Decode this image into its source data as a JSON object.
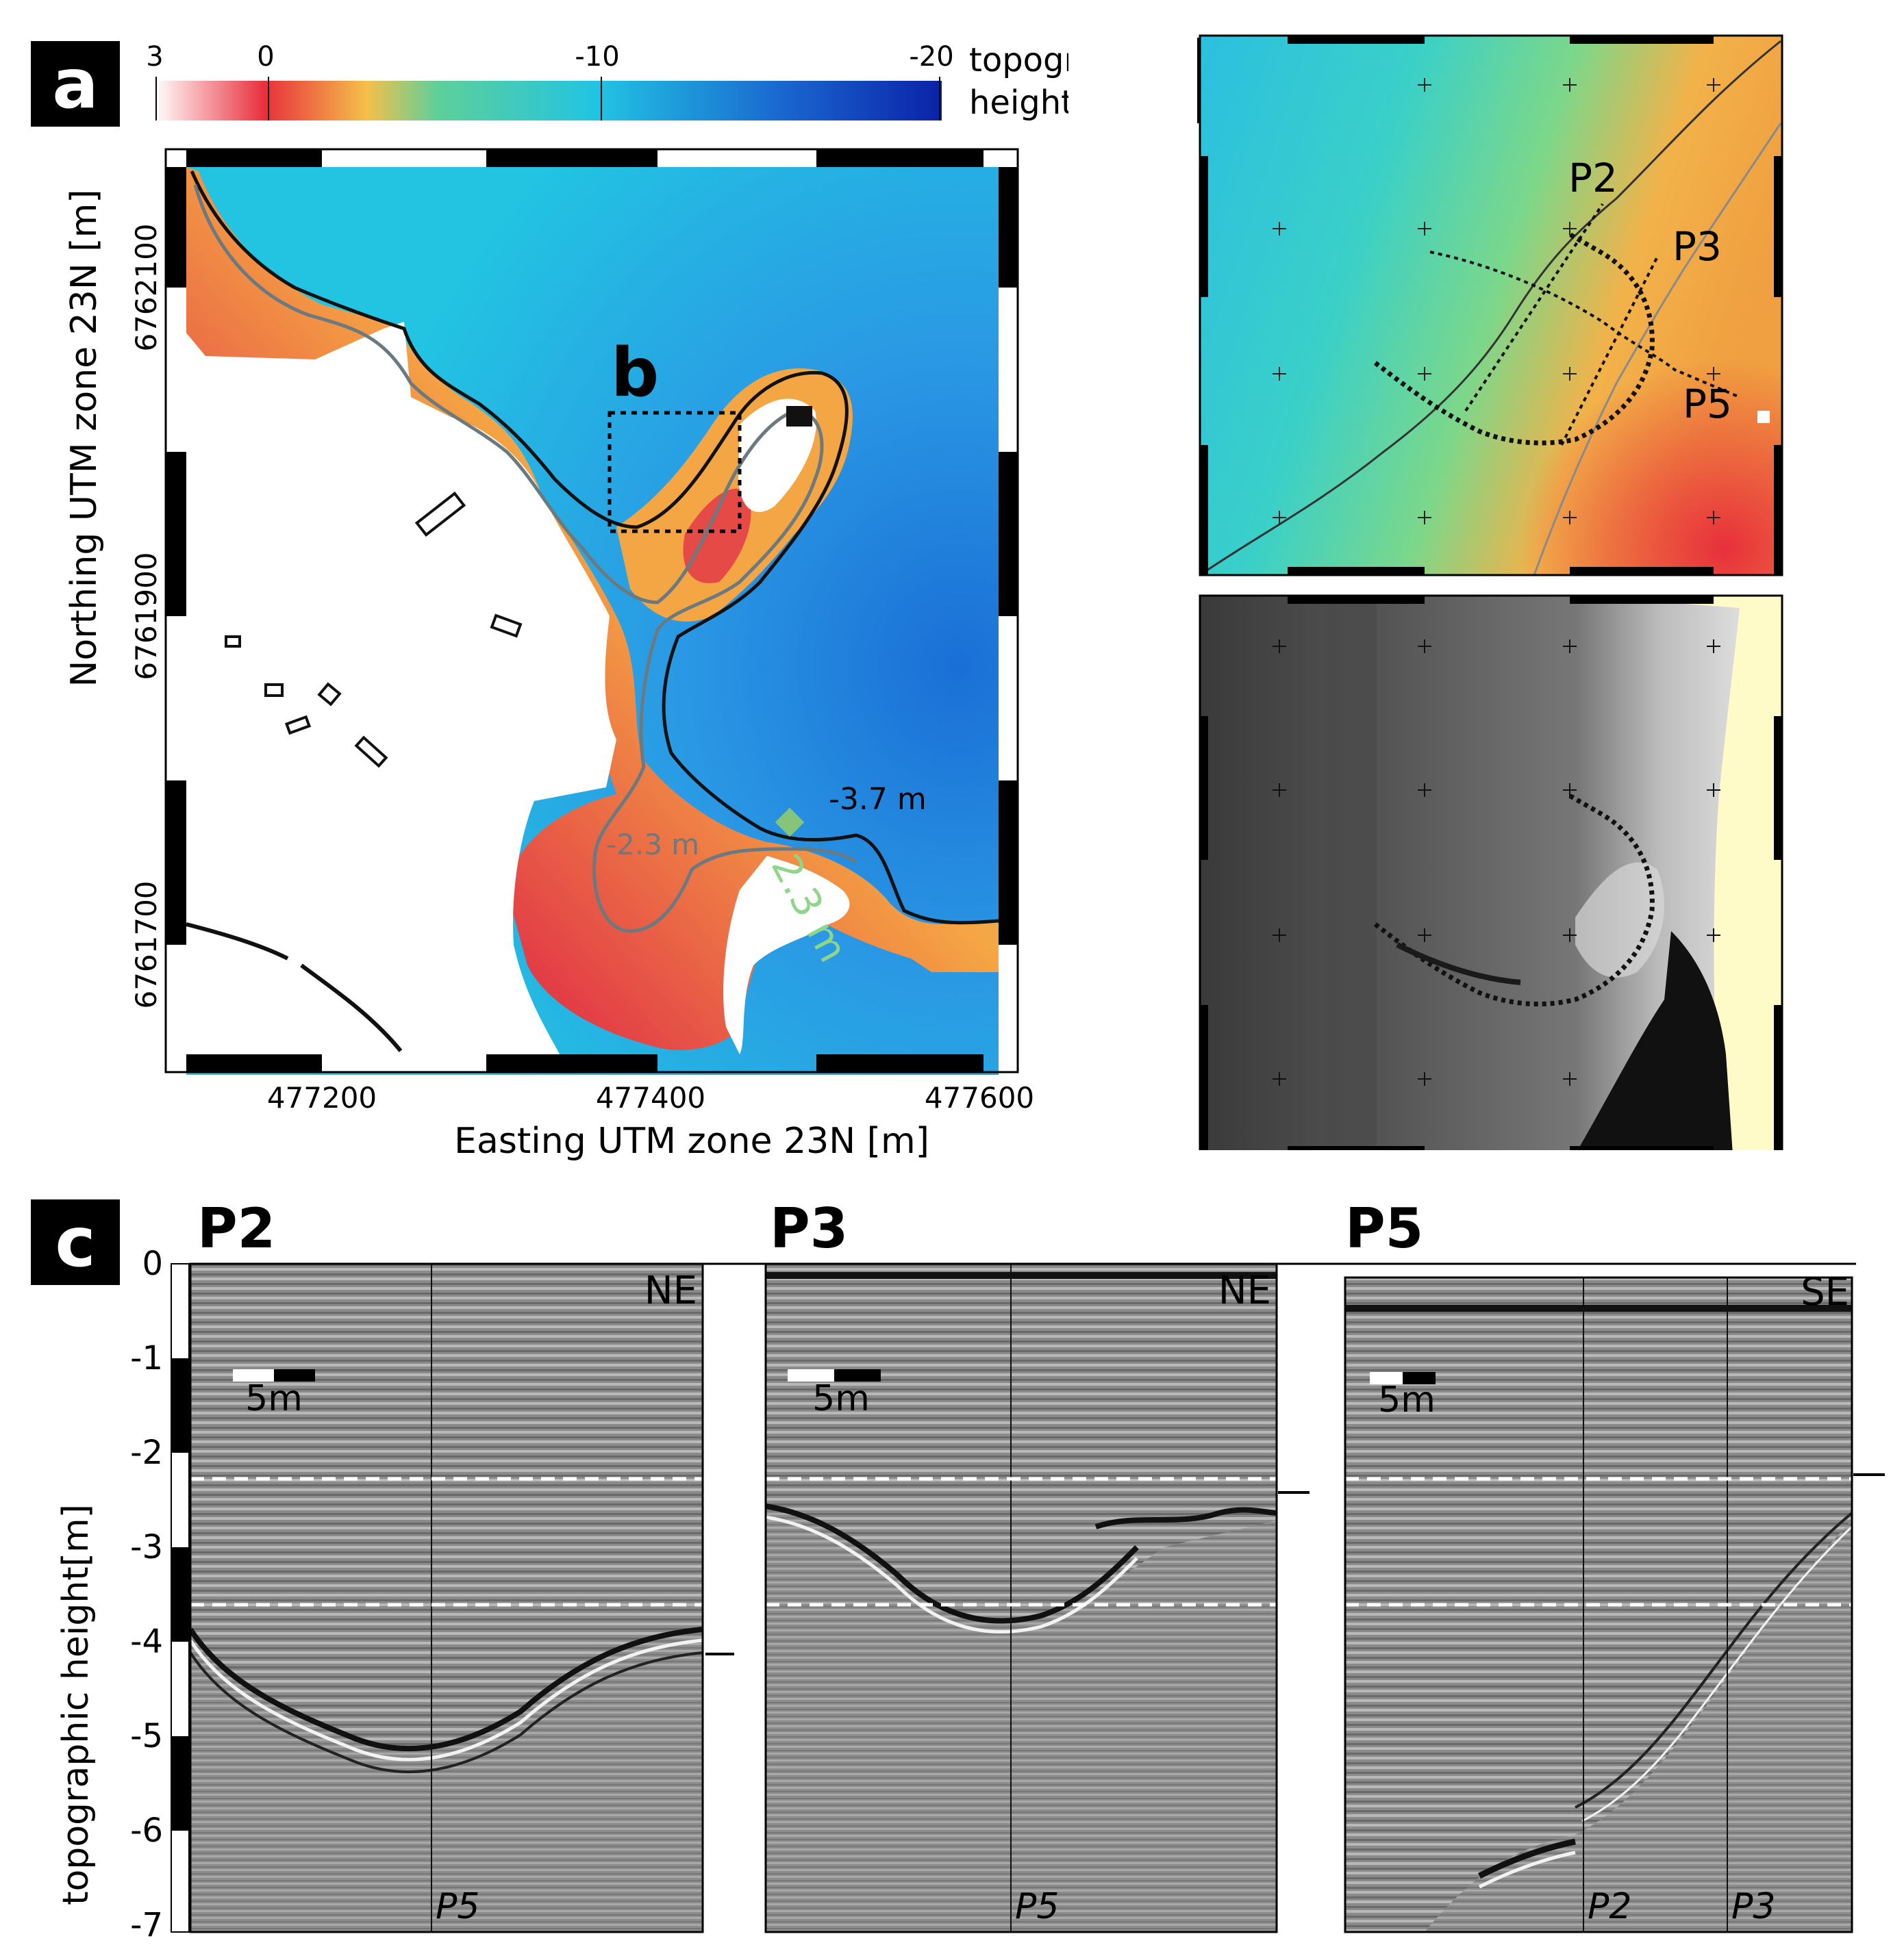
{
  "panel_a": {
    "badge": "a",
    "colorbar": {
      "ticks": [
        "3",
        "0",
        "-10",
        "-20"
      ],
      "title_line1": "topographic",
      "title_line2": "height [m]",
      "stops": [
        "#ffffff",
        "#e8303c",
        "#f5c04a",
        "#5ecf9a",
        "#22c4e2",
        "#1a66cf",
        "#0a22a8"
      ]
    },
    "inset_label": "b",
    "contour_label_dark": "-3.7 m",
    "contour_label_grey": "-2.3 m",
    "contour_label_green": "2.3 m",
    "x_ticks": [
      "477200",
      "477400",
      "477600"
    ],
    "y_ticks": [
      "6762100",
      "6761900",
      "6761700"
    ],
    "xlabel": "Easting UTM zone 23N [m]",
    "ylabel": "Northing UTM zone 23N [m]"
  },
  "panel_b": {
    "badge": "b",
    "profile_labels": [
      "P2",
      "P3",
      "P5"
    ]
  },
  "panel_c": {
    "badge": "c",
    "ylabel": "topographic height[m]",
    "y_ticks": [
      "0",
      "-1",
      "-2",
      "-3",
      "-4",
      "-5",
      "-6",
      "-7"
    ],
    "profiles": [
      {
        "title": "P2",
        "direction": "NE",
        "scale": "5m",
        "crossing": "P5"
      },
      {
        "title": "P3",
        "direction": "NE",
        "scale": "5m",
        "crossing": "P5"
      },
      {
        "title": "P5",
        "direction": "SE",
        "scale": "5m",
        "crossing": "P2",
        "crossing2": "P3"
      }
    ],
    "reference_levels_m": [
      -2.3,
      -3.7
    ]
  }
}
